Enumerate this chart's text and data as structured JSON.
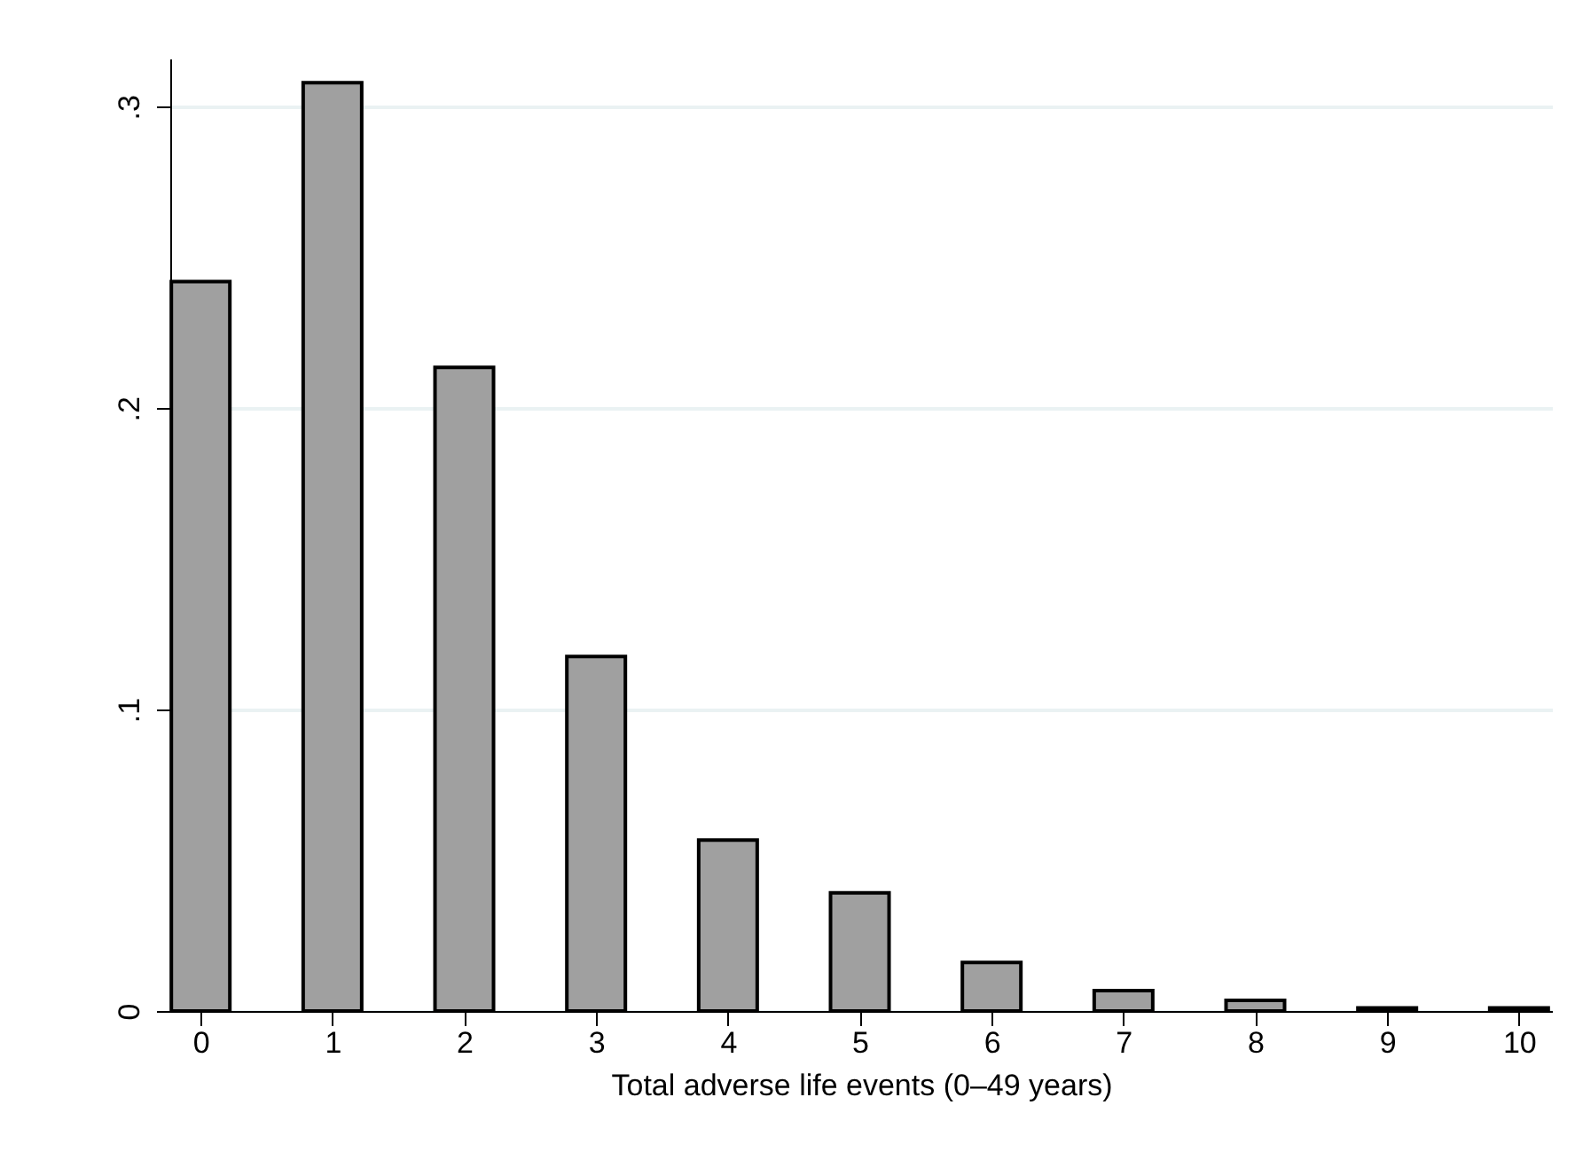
{
  "chart_data": {
    "type": "bar",
    "xlabel": "Total adverse life events (0–49 years)",
    "x": [
      0,
      1,
      2,
      3,
      4,
      5,
      6,
      7,
      8,
      9,
      10
    ],
    "values": [
      0.242,
      0.308,
      0.2135,
      0.1176,
      0.0567,
      0.0392,
      0.0161,
      0.0068,
      0.0035,
      0.001,
      0.001
    ],
    "color": "#a0a0a0",
    "xlim": [
      -0.23,
      10.25
    ],
    "xticks": [
      0,
      1,
      2,
      3,
      4,
      5,
      6,
      7,
      8,
      9,
      10
    ],
    "ylim": [
      0,
      0.316
    ],
    "yticks": [
      {
        "value": 0,
        "label": "0"
      },
      {
        "value": 0.1,
        "label": ".1"
      },
      {
        "value": 0.2,
        "label": ".2"
      },
      {
        "value": 0.3,
        "label": ".3"
      }
    ],
    "grid": "y"
  }
}
